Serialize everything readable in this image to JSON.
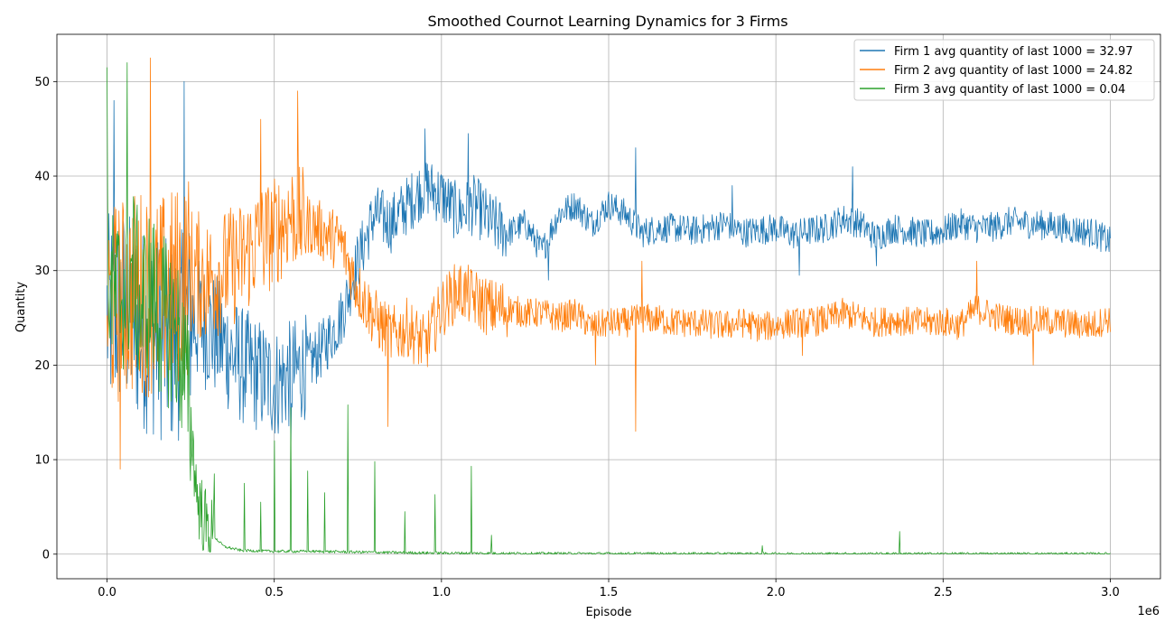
{
  "chart_data": {
    "type": "line",
    "title": "Smoothed Cournot Learning Dynamics for 3 Firms",
    "xlabel": "Episode",
    "ylabel": "Quantity",
    "x_offset_text": "1e6",
    "xlim": [
      -0.15,
      3.15
    ],
    "ylim": [
      -2.6,
      55
    ],
    "x_ticks": [
      0.0,
      0.5,
      1.0,
      1.5,
      2.0,
      2.5,
      3.0
    ],
    "x_tick_labels": [
      "0.0",
      "0.5",
      "1.0",
      "1.5",
      "2.0",
      "2.5",
      "3.0"
    ],
    "y_ticks": [
      0,
      10,
      20,
      30,
      40,
      50
    ],
    "y_tick_labels": [
      "0",
      "10",
      "20",
      "30",
      "40",
      "50"
    ],
    "grid": true,
    "legend_position": "top-right",
    "series": [
      {
        "name": "Firm 1 avg quantity of last 1000 = 32.97",
        "color": "#1f77b4",
        "noise": 1.6,
        "spikes": [
          [
            0.02,
            48
          ],
          [
            0.23,
            50
          ],
          [
            0.55,
            11
          ],
          [
            0.95,
            45
          ],
          [
            1.08,
            44.5
          ],
          [
            1.32,
            29
          ],
          [
            1.58,
            43
          ],
          [
            1.87,
            39
          ],
          [
            2.07,
            29.5
          ],
          [
            2.23,
            41
          ],
          [
            2.3,
            30.5
          ]
        ],
        "x": [
          0.0,
          0.05,
          0.1,
          0.15,
          0.2,
          0.25,
          0.3,
          0.35,
          0.4,
          0.45,
          0.5,
          0.55,
          0.6,
          0.65,
          0.7,
          0.75,
          0.8,
          0.85,
          0.9,
          0.95,
          1.0,
          1.05,
          1.1,
          1.15,
          1.2,
          1.25,
          1.3,
          1.35,
          1.4,
          1.45,
          1.5,
          1.55,
          1.6,
          1.65,
          1.7,
          1.75,
          1.8,
          1.85,
          1.9,
          1.95,
          2.0,
          2.05,
          2.1,
          2.15,
          2.2,
          2.25,
          2.3,
          2.35,
          2.4,
          2.45,
          2.5,
          2.55,
          2.6,
          2.65,
          2.7,
          2.75,
          2.8,
          2.85,
          2.9,
          2.95,
          3.0
        ],
        "y": [
          25,
          26,
          24,
          23,
          22,
          25,
          24,
          22,
          20,
          19,
          18,
          19,
          20,
          22,
          25,
          31,
          36,
          35,
          37,
          39,
          38,
          36,
          37,
          35,
          34,
          35,
          32,
          36,
          37,
          35,
          37,
          36,
          34,
          34.5,
          34.5,
          34.2,
          34.5,
          35,
          34,
          34.3,
          34.5,
          33.8,
          34.2,
          34.5,
          35.5,
          35,
          33.5,
          34.5,
          34.2,
          33.8,
          34.2,
          35,
          34.5,
          34.6,
          35.2,
          35,
          34.8,
          34.6,
          34.3,
          34,
          33
        ]
      },
      {
        "name": "Firm 2 avg quantity of last 1000 = 24.82",
        "color": "#ff7f0e",
        "noise": 1.6,
        "spikes": [
          [
            0.04,
            9
          ],
          [
            0.13,
            52.5
          ],
          [
            0.46,
            46
          ],
          [
            0.57,
            49
          ],
          [
            0.84,
            13.5
          ],
          [
            1.46,
            20
          ],
          [
            1.58,
            13
          ],
          [
            1.6,
            31
          ],
          [
            2.08,
            21
          ],
          [
            2.6,
            31
          ],
          [
            2.77,
            20
          ]
        ],
        "x": [
          0.0,
          0.05,
          0.1,
          0.15,
          0.2,
          0.25,
          0.3,
          0.35,
          0.4,
          0.45,
          0.5,
          0.55,
          0.6,
          0.65,
          0.7,
          0.75,
          0.8,
          0.85,
          0.9,
          0.95,
          1.0,
          1.05,
          1.1,
          1.15,
          1.2,
          1.25,
          1.3,
          1.35,
          1.4,
          1.45,
          1.5,
          1.55,
          1.6,
          1.65,
          1.7,
          1.75,
          1.8,
          1.85,
          1.9,
          1.95,
          2.0,
          2.05,
          2.1,
          2.15,
          2.2,
          2.25,
          2.3,
          2.35,
          2.4,
          2.45,
          2.5,
          2.55,
          2.6,
          2.65,
          2.7,
          2.75,
          2.8,
          2.85,
          2.9,
          2.95,
          3.0
        ],
        "y": [
          26,
          27,
          28,
          27,
          28,
          30,
          29,
          30,
          31,
          33,
          34,
          36,
          35,
          34,
          33,
          28,
          25,
          23,
          24,
          22,
          26,
          28,
          27,
          26,
          26,
          25.5,
          25.5,
          25,
          25.5,
          24,
          24.5,
          24.5,
          25,
          24.8,
          24.5,
          24.5,
          24.3,
          24.2,
          24.5,
          24,
          24.2,
          24.5,
          24.5,
          24.8,
          25.5,
          25,
          24.5,
          24.8,
          24.6,
          24.5,
          24.6,
          24.2,
          26,
          25.2,
          24.8,
          24.6,
          24.7,
          24.5,
          24.3,
          24.2,
          25
        ]
      },
      {
        "name": "Firm 3 avg quantity of last 1000 = 0.04",
        "color": "#2ca02c",
        "noise": 0.15,
        "spikes": [
          [
            0.0,
            51.5
          ],
          [
            0.06,
            52
          ],
          [
            0.32,
            8.5
          ],
          [
            0.41,
            7.5
          ],
          [
            0.46,
            5.5
          ],
          [
            0.5,
            12
          ],
          [
            0.55,
            15.5
          ],
          [
            0.6,
            8.8
          ],
          [
            0.65,
            6.5
          ],
          [
            0.72,
            15.8
          ],
          [
            0.8,
            9.8
          ],
          [
            0.89,
            4.5
          ],
          [
            0.98,
            6.3
          ],
          [
            1.09,
            9.3
          ],
          [
            1.15,
            2.0
          ],
          [
            1.96,
            0.9
          ],
          [
            2.37,
            2.4
          ]
        ],
        "x": [
          0.0,
          0.02,
          0.05,
          0.08,
          0.1,
          0.13,
          0.16,
          0.2,
          0.23,
          0.25,
          0.27,
          0.3,
          0.33,
          0.35,
          0.4,
          0.5,
          0.6,
          0.7,
          0.8,
          0.9,
          1.0,
          1.1,
          1.2,
          1.5,
          2.0,
          2.5,
          3.0
        ],
        "y": [
          30,
          27,
          28,
          30,
          26,
          28,
          25,
          24,
          20,
          14,
          6,
          2.5,
          1.5,
          0.8,
          0.4,
          0.3,
          0.3,
          0.25,
          0.2,
          0.15,
          0.12,
          0.1,
          0.08,
          0.06,
          0.05,
          0.04,
          0.04
        ]
      }
    ]
  }
}
